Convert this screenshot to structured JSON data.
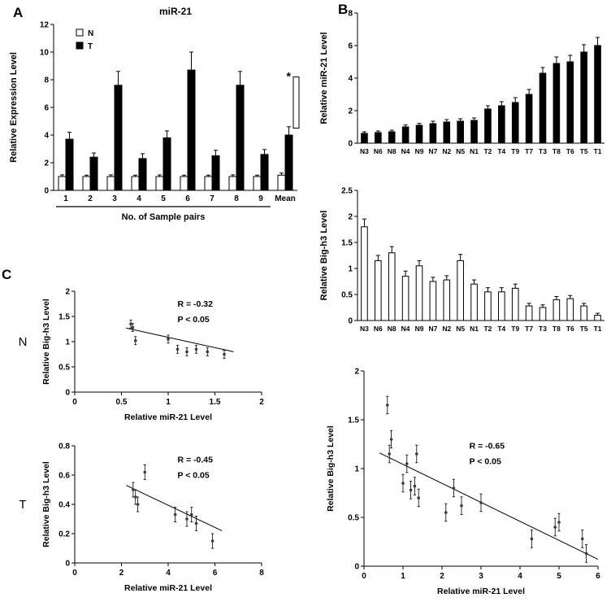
{
  "panel_labels": {
    "a": "A",
    "b": "B",
    "c": "C"
  },
  "colors": {
    "axis": "#000000",
    "bar_dark": "#000000",
    "bar_light": "#ffffff",
    "point": "#3a3a3a"
  },
  "chart_data": [
    {
      "id": "panel-a",
      "type": "bar",
      "title": "miR-21",
      "ylabel": "Relative Expression Level",
      "xlabel": "No. of Sample pairs",
      "ylim": [
        0,
        12
      ],
      "yticks": [
        0,
        2,
        4,
        6,
        8,
        10,
        12
      ],
      "categories": [
        "1",
        "2",
        "3",
        "4",
        "5",
        "6",
        "7",
        "8",
        "9",
        "Mean"
      ],
      "series": [
        {
          "name": "N",
          "fill": "#ffffff",
          "values": [
            1,
            1,
            1,
            1,
            1,
            1,
            1,
            1,
            1,
            1.1
          ],
          "errors": [
            0.12,
            0.1,
            0.12,
            0.1,
            0.12,
            0.1,
            0.1,
            0.12,
            0.1,
            0.15
          ]
        },
        {
          "name": "T",
          "fill": "#000000",
          "values": [
            3.7,
            2.4,
            7.6,
            2.3,
            3.8,
            8.7,
            2.5,
            7.6,
            2.6,
            4.0
          ],
          "errors": [
            0.5,
            0.3,
            1.0,
            0.35,
            0.5,
            1.3,
            0.4,
            1.0,
            0.35,
            0.6
          ]
        }
      ],
      "legend": [
        "N",
        "T"
      ],
      "significance": {
        "label": "*",
        "category": "Mean",
        "bracket_top": 8.2,
        "bracket_bottom": 4.5
      },
      "underline_span": [
        0,
        8
      ]
    },
    {
      "id": "panel-b-mir21",
      "type": "bar",
      "ylabel": "Relative miR-21 Level",
      "ylim": [
        0,
        8
      ],
      "yticks": [
        0,
        2,
        4,
        6,
        8
      ],
      "categories": [
        "N3",
        "N6",
        "N8",
        "N4",
        "N9",
        "N7",
        "N2",
        "N5",
        "N1",
        "T2",
        "T4",
        "T9",
        "T7",
        "T3",
        "T8",
        "T6",
        "T5",
        "T1"
      ],
      "fill": "#000000",
      "values": [
        0.6,
        0.65,
        0.7,
        1.0,
        1.1,
        1.2,
        1.3,
        1.35,
        1.4,
        2.1,
        2.3,
        2.5,
        3.0,
        4.3,
        4.9,
        5.0,
        5.6,
        6.0
      ],
      "errors": [
        0.1,
        0.1,
        0.1,
        0.12,
        0.12,
        0.15,
        0.15,
        0.15,
        0.15,
        0.2,
        0.25,
        0.3,
        0.3,
        0.35,
        0.4,
        0.4,
        0.45,
        0.5
      ]
    },
    {
      "id": "panel-b-bigh3",
      "type": "bar",
      "ylabel": "Relative Big-h3 Level",
      "ylim": [
        0,
        2.5
      ],
      "yticks": [
        0,
        0.5,
        1,
        1.5,
        2,
        2.5
      ],
      "categories": [
        "N3",
        "N6",
        "N8",
        "N4",
        "N9",
        "N7",
        "N2",
        "N5",
        "N1",
        "T2",
        "T4",
        "T9",
        "T7",
        "T3",
        "T8",
        "T6",
        "T5",
        "T1"
      ],
      "fill": "#ffffff",
      "values": [
        1.8,
        1.15,
        1.3,
        0.85,
        1.05,
        0.75,
        0.78,
        1.15,
        0.7,
        0.55,
        0.55,
        0.62,
        0.28,
        0.25,
        0.4,
        0.42,
        0.28,
        0.1
      ],
      "errors": [
        0.15,
        0.1,
        0.12,
        0.1,
        0.1,
        0.08,
        0.08,
        0.12,
        0.08,
        0.08,
        0.08,
        0.08,
        0.05,
        0.05,
        0.06,
        0.06,
        0.05,
        0.04
      ]
    },
    {
      "id": "panel-b-scatter",
      "type": "scatter",
      "ylabel": "Relative Big-h3 Level",
      "xlabel": "Relative miR-21 Level",
      "xlim": [
        0,
        6
      ],
      "ylim": [
        0,
        2
      ],
      "xticks": [
        0,
        1,
        2,
        3,
        4,
        5,
        6
      ],
      "yticks": [
        0,
        0.5,
        1,
        1.5,
        2
      ],
      "points": [
        [
          0.6,
          1.65
        ],
        [
          0.65,
          1.15
        ],
        [
          0.7,
          1.3
        ],
        [
          1.0,
          0.85
        ],
        [
          1.1,
          1.05
        ],
        [
          1.2,
          0.78
        ],
        [
          1.3,
          0.82
        ],
        [
          1.35,
          1.15
        ],
        [
          1.4,
          0.7
        ],
        [
          2.1,
          0.55
        ],
        [
          2.3,
          0.8
        ],
        [
          2.5,
          0.62
        ],
        [
          3.0,
          0.65
        ],
        [
          4.3,
          0.28
        ],
        [
          4.9,
          0.4
        ],
        [
          5.0,
          0.45
        ],
        [
          5.6,
          0.28
        ],
        [
          5.7,
          0.13
        ]
      ],
      "point_error": 0.09,
      "trendline": {
        "x1": 0.4,
        "y1": 1.16,
        "x2": 6.0,
        "y2": 0.07
      },
      "stats": [
        "R = -0.65",
        "P < 0.05"
      ],
      "stats_pos": [
        0.45,
        0.36
      ]
    },
    {
      "id": "panel-c-n",
      "type": "scatter",
      "row_label": "N",
      "ylabel": "Relative Big-h3 Level",
      "xlabel": "Relative miR-21 Level",
      "xlim": [
        0,
        2
      ],
      "ylim": [
        0,
        2
      ],
      "xticks": [
        0,
        0.5,
        1,
        1.5,
        2
      ],
      "yticks": [
        0,
        0.5,
        1,
        1.5,
        2
      ],
      "points": [
        [
          0.6,
          1.35
        ],
        [
          0.62,
          1.28
        ],
        [
          0.65,
          1.02
        ],
        [
          1.0,
          1.05
        ],
        [
          1.1,
          0.85
        ],
        [
          1.2,
          0.8
        ],
        [
          1.3,
          0.85
        ],
        [
          1.42,
          0.8
        ],
        [
          1.6,
          0.75
        ]
      ],
      "point_error": 0.08,
      "trendline": {
        "x1": 0.55,
        "y1": 1.27,
        "x2": 1.7,
        "y2": 0.8
      },
      "stats": [
        "R = -0.32",
        "P < 0.05"
      ],
      "stats_pos": [
        0.55,
        0.08
      ]
    },
    {
      "id": "panel-c-t",
      "type": "scatter",
      "row_label": "T",
      "ylabel": "Relative Big-h3 Level",
      "xlabel": "Relative miR-21 Level",
      "xlim": [
        0,
        8
      ],
      "ylim": [
        0,
        0.8
      ],
      "xticks": [
        0,
        2,
        4,
        6,
        8
      ],
      "yticks": [
        0,
        0.2,
        0.4,
        0.6,
        0.8
      ],
      "points": [
        [
          2.5,
          0.5
        ],
        [
          2.6,
          0.45
        ],
        [
          2.7,
          0.4
        ],
        [
          3.0,
          0.62
        ],
        [
          4.3,
          0.33
        ],
        [
          4.8,
          0.3
        ],
        [
          5.0,
          0.33
        ],
        [
          5.2,
          0.27
        ],
        [
          5.9,
          0.15
        ]
      ],
      "point_error": 0.05,
      "trendline": {
        "x1": 2.2,
        "y1": 0.53,
        "x2": 6.3,
        "y2": 0.22
      },
      "stats": [
        "R = -0.45",
        "P < 0.05"
      ],
      "stats_pos": [
        0.55,
        0.08
      ]
    }
  ]
}
